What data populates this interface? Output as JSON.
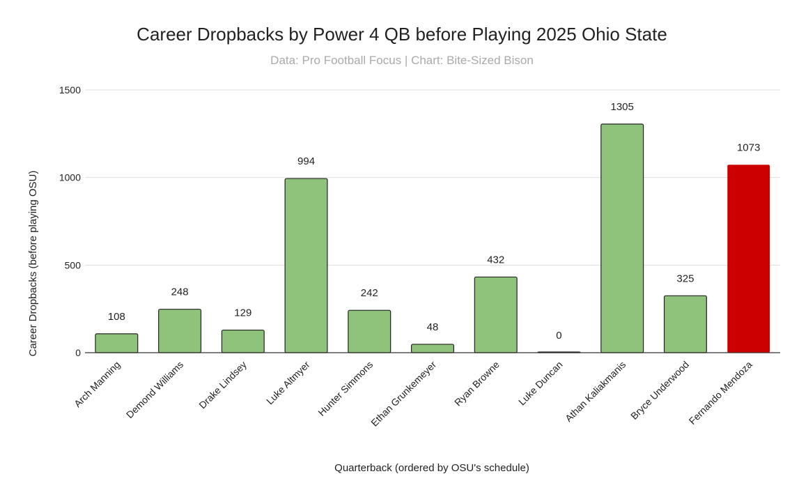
{
  "chart_data": {
    "type": "bar",
    "title": "Career Dropbacks by Power 4 QB before Playing 2025 Ohio State",
    "subtitle": "Data: Pro Football Focus | Chart: Bite-Sized Bison",
    "xlabel": "Quarterback (ordered by OSU's schedule)",
    "ylabel": "Career Dropbacks (before playing OSU)",
    "ylim": [
      0,
      1500
    ],
    "yticks": [
      0,
      500,
      1000,
      1500
    ],
    "grid": true,
    "legend": "none",
    "categories": [
      "Arch Manning",
      "Demond Williams",
      "Drake Lindsey",
      "Luke Altmyer",
      "Hunter Simmons",
      "Ethan Grunkemeyer",
      "Ryan Browne",
      "Luke Duncan",
      "Athan Kaliakmanis",
      "Bryce Underwood",
      "Fernando Mendoza"
    ],
    "values": [
      108,
      248,
      129,
      994,
      242,
      48,
      432,
      0,
      1305,
      325,
      1073
    ],
    "data_labels": [
      "108",
      "248",
      "129",
      "994",
      "242",
      "48",
      "432",
      "0",
      "1305",
      "325",
      "1073"
    ],
    "colors": {
      "default": "#8fc27a",
      "highlight": "#cc0000",
      "stroke": "#222222",
      "grid": "#dddddd",
      "axis": "#333333",
      "subtitle": "#aaaaaa"
    },
    "highlight_category": "Fernando Mendoza"
  }
}
